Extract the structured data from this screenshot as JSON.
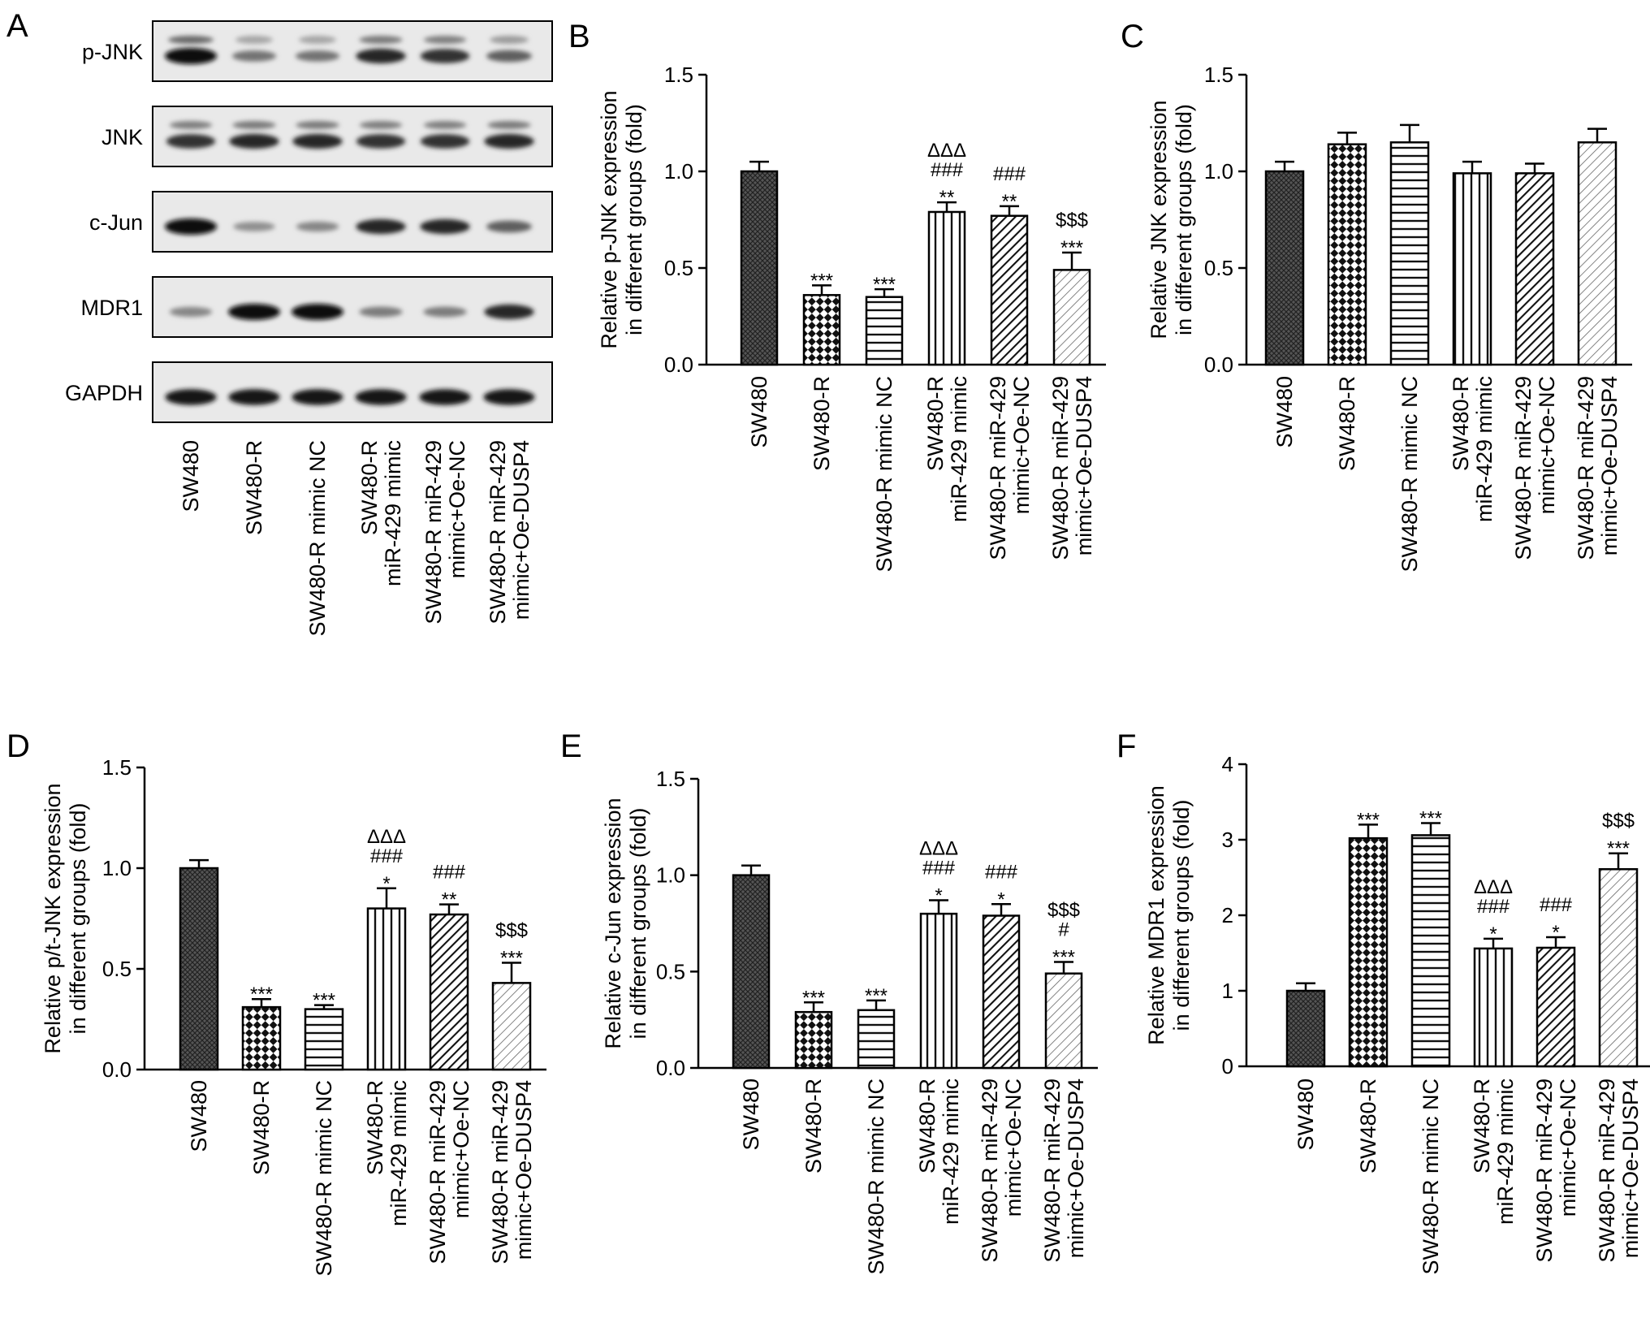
{
  "figure": {
    "panel_a": {
      "letter": "A",
      "blots": [
        "p-JNK",
        "JNK",
        "c-Jun",
        "MDR1",
        "GAPDH"
      ],
      "lanes": [
        [
          "SW480"
        ],
        [
          "SW480-R"
        ],
        [
          "SW480-R mimic NC"
        ],
        [
          "SW480-R",
          "miR-429 mimic"
        ],
        [
          "SW480-R miR-429",
          "mimic+Oe-NC"
        ],
        [
          "SW480-R miR-429",
          "mimic+Oe-DUSP4"
        ]
      ],
      "band_intensity": {
        "p-JNK": [
          1.0,
          0.45,
          0.45,
          0.85,
          0.8,
          0.55
        ],
        "JNK": [
          0.8,
          0.85,
          0.85,
          0.8,
          0.8,
          0.85
        ],
        "c-Jun": [
          1.0,
          0.3,
          0.35,
          0.85,
          0.85,
          0.55
        ],
        "MDR1": [
          0.35,
          1.0,
          1.0,
          0.4,
          0.4,
          0.85
        ],
        "GAPDH": [
          0.95,
          0.95,
          0.95,
          0.95,
          0.95,
          0.95
        ]
      }
    }
  },
  "chart_data": [
    {
      "panel": "B",
      "type": "bar",
      "categories": [
        [
          "SW480"
        ],
        [
          "SW480-R"
        ],
        [
          "SW480-R mimic NC"
        ],
        [
          "SW480-R",
          "miR-429 mimic"
        ],
        [
          "SW480-R miR-429",
          "mimic+Oe-NC"
        ],
        [
          "SW480-R miR-429",
          "mimic+Oe-DUSP4"
        ]
      ],
      "values": [
        1.0,
        0.36,
        0.35,
        0.79,
        0.77,
        0.49
      ],
      "errors": [
        0.05,
        0.05,
        0.04,
        0.05,
        0.05,
        0.09
      ],
      "annotations": [
        [],
        [
          "***"
        ],
        [
          "***"
        ],
        [
          "ΔΔΔ",
          "###",
          "**"
        ],
        [
          "###",
          "**"
        ],
        [
          "$$$",
          "***"
        ]
      ],
      "ylabel": [
        "Relative p-JNK expression",
        "in different groups (fold)"
      ],
      "ylim": [
        0,
        1.5
      ],
      "yticks": [
        "0.0",
        "0.5",
        "1.0",
        "1.5"
      ],
      "patterns": [
        "cross",
        "check",
        "hlines",
        "vlines",
        "diag-dense",
        "diag-light"
      ]
    },
    {
      "panel": "C",
      "type": "bar",
      "categories": [
        [
          "SW480"
        ],
        [
          "SW480-R"
        ],
        [
          "SW480-R mimic NC"
        ],
        [
          "SW480-R",
          "miR-429 mimic"
        ],
        [
          "SW480-R miR-429",
          "mimic+Oe-NC"
        ],
        [
          "SW480-R miR-429",
          "mimic+Oe-DUSP4"
        ]
      ],
      "values": [
        1.0,
        1.14,
        1.15,
        0.99,
        0.99,
        1.15
      ],
      "errors": [
        0.05,
        0.06,
        0.09,
        0.06,
        0.05,
        0.07
      ],
      "annotations": [
        [],
        [],
        [],
        [],
        [],
        []
      ],
      "ylabel": [
        "Relative JNK expression",
        "in different groups (fold)"
      ],
      "ylim": [
        0,
        1.5
      ],
      "yticks": [
        "0.0",
        "0.5",
        "1.0",
        "1.5"
      ],
      "patterns": [
        "cross",
        "check",
        "hlines",
        "vlines",
        "diag-dense",
        "diag-light"
      ]
    },
    {
      "panel": "D",
      "type": "bar",
      "categories": [
        [
          "SW480"
        ],
        [
          "SW480-R"
        ],
        [
          "SW480-R mimic NC"
        ],
        [
          "SW480-R",
          "miR-429 mimic"
        ],
        [
          "SW480-R miR-429",
          "mimic+Oe-NC"
        ],
        [
          "SW480-R miR-429",
          "mimic+Oe-DUSP4"
        ]
      ],
      "values": [
        1.0,
        0.31,
        0.3,
        0.8,
        0.77,
        0.43
      ],
      "errors": [
        0.04,
        0.04,
        0.02,
        0.1,
        0.05,
        0.1
      ],
      "annotations": [
        [],
        [
          "***"
        ],
        [
          "***"
        ],
        [
          "ΔΔΔ",
          "###",
          "*"
        ],
        [
          "###",
          "**"
        ],
        [
          "$$$",
          "***"
        ]
      ],
      "ylabel": [
        "Relative p/t-JNK expression",
        "in different groups (fold)"
      ],
      "ylim": [
        0,
        1.5
      ],
      "yticks": [
        "0.0",
        "0.5",
        "1.0",
        "1.5"
      ],
      "patterns": [
        "cross",
        "check",
        "hlines",
        "vlines",
        "diag-dense",
        "diag-light"
      ]
    },
    {
      "panel": "E",
      "type": "bar",
      "categories": [
        [
          "SW480"
        ],
        [
          "SW480-R"
        ],
        [
          "SW480-R mimic NC"
        ],
        [
          "SW480-R",
          "miR-429 mimic"
        ],
        [
          "SW480-R miR-429",
          "mimic+Oe-NC"
        ],
        [
          "SW480-R miR-429",
          "mimic+Oe-DUSP4"
        ]
      ],
      "values": [
        1.0,
        0.29,
        0.3,
        0.8,
        0.79,
        0.49
      ],
      "errors": [
        0.05,
        0.05,
        0.05,
        0.07,
        0.06,
        0.06
      ],
      "annotations": [
        [],
        [
          "***"
        ],
        [
          "***"
        ],
        [
          "ΔΔΔ",
          "###",
          "*"
        ],
        [
          "###",
          "*"
        ],
        [
          "$$$",
          "#",
          "***"
        ]
      ],
      "ylabel": [
        "Relative c-Jun expression",
        "in different groups (fold)"
      ],
      "ylim": [
        0,
        1.5
      ],
      "yticks": [
        "0.0",
        "0.5",
        "1.0",
        "1.5"
      ],
      "patterns": [
        "cross",
        "check",
        "hlines",
        "vlines",
        "diag-dense",
        "diag-light"
      ]
    },
    {
      "panel": "F",
      "type": "bar",
      "categories": [
        [
          "SW480"
        ],
        [
          "SW480-R"
        ],
        [
          "SW480-R mimic NC"
        ],
        [
          "SW480-R",
          "miR-429 mimic"
        ],
        [
          "SW480-R miR-429",
          "mimic+Oe-NC"
        ],
        [
          "SW480-R miR-429",
          "mimic+Oe-DUSP4"
        ]
      ],
      "values": [
        1.0,
        3.02,
        3.06,
        1.56,
        1.57,
        2.61
      ],
      "errors": [
        0.1,
        0.18,
        0.16,
        0.13,
        0.14,
        0.21
      ],
      "annotations": [
        [],
        [
          "***"
        ],
        [
          "***"
        ],
        [
          "ΔΔΔ",
          "###",
          "*"
        ],
        [
          "###",
          "*"
        ],
        [
          "$$$",
          "***"
        ]
      ],
      "ylabel": [
        "Relative MDR1 expression",
        "in different groups (fold)"
      ],
      "ylim": [
        0,
        4
      ],
      "yticks": [
        "0",
        "1",
        "2",
        "3",
        "4"
      ],
      "patterns": [
        "cross",
        "check",
        "hlines",
        "vlines",
        "diag-dense",
        "diag-light"
      ]
    }
  ]
}
